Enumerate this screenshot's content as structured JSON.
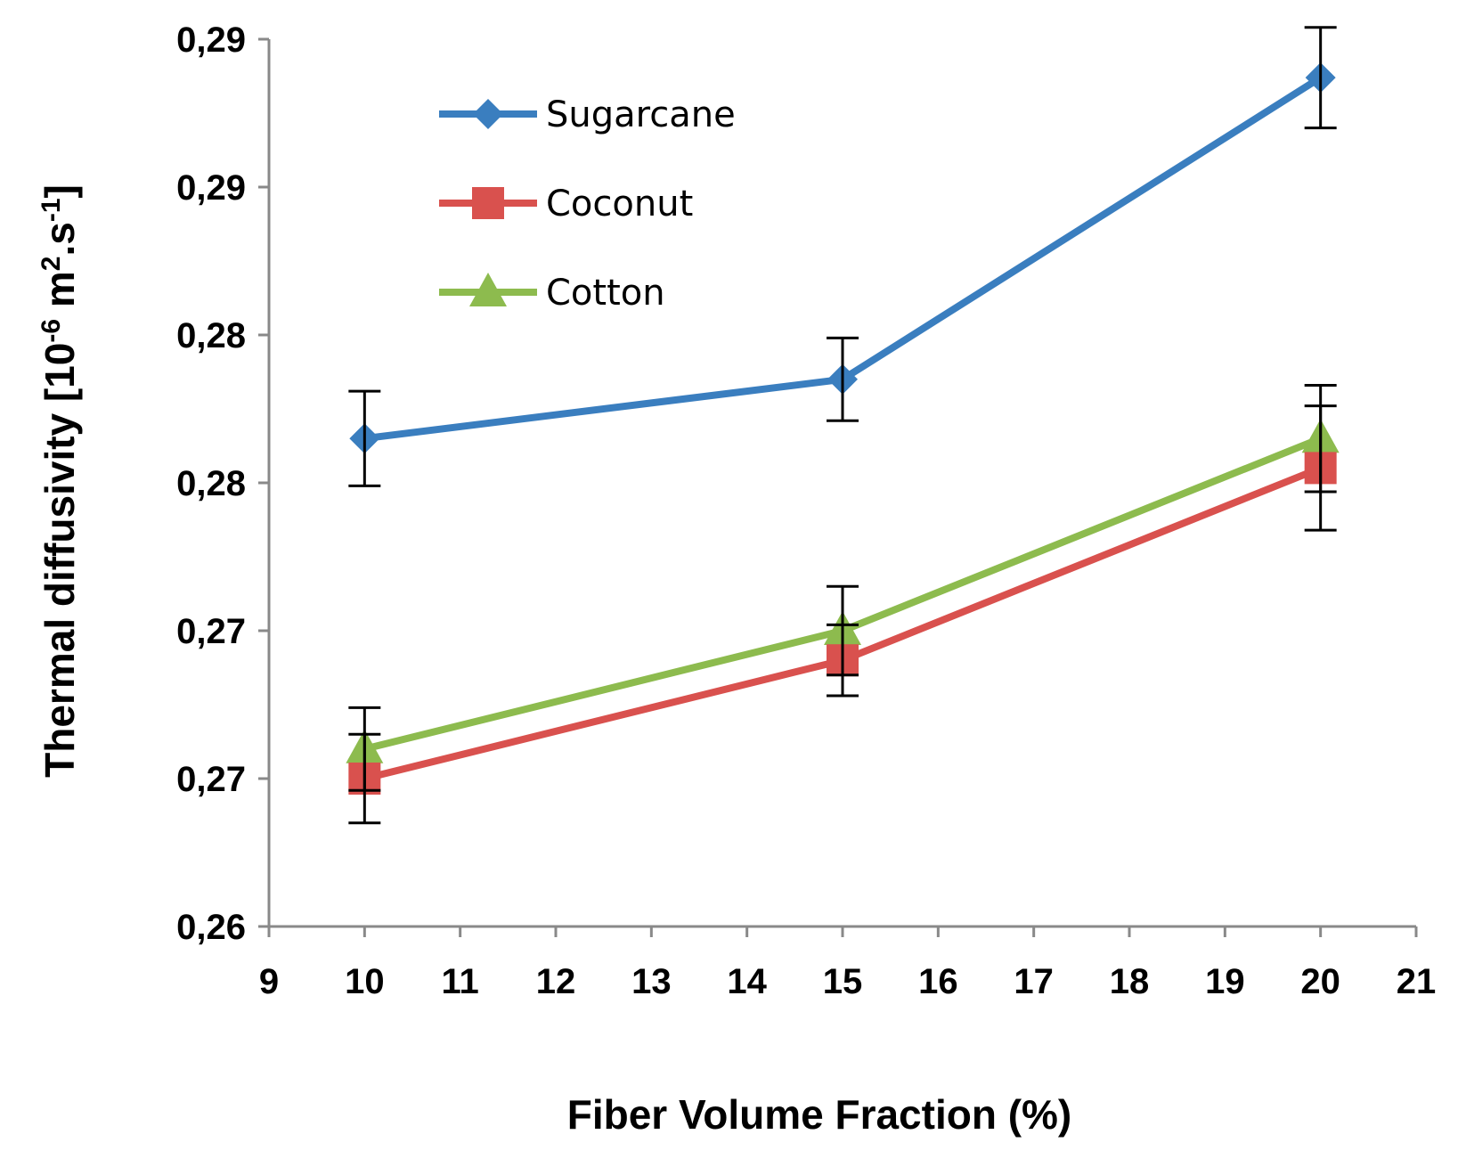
{
  "chart_data": {
    "type": "line",
    "title": "",
    "xlabel": "Fiber Volume Fraction (%)",
    "ylabel": {
      "text": "Thermal diffusivity [10",
      "exp1": "-6",
      "mid": " m",
      "exp2": "2",
      "mid2": ".s",
      "exp3": "-1",
      "end": "]"
    },
    "x_ticks": [
      "9",
      "10",
      "11",
      "12",
      "13",
      "14",
      "15",
      "16",
      "17",
      "18",
      "19",
      "20",
      "21"
    ],
    "xlim": [
      9,
      21
    ],
    "y_tick_values": [
      0.26,
      0.265,
      0.27,
      0.275,
      0.28,
      0.285,
      0.29
    ],
    "y_tick_labels": [
      "0,26",
      "0,27",
      "0,27",
      "0,28",
      "0,28",
      "0,29",
      "0,29"
    ],
    "ylim": [
      0.26,
      0.29
    ],
    "legend_position": "top-left",
    "series": [
      {
        "name": "Sugarcane",
        "color": "#3A7EBF",
        "marker": "diamond",
        "x": [
          10,
          15,
          20
        ],
        "values": [
          0.2765,
          0.2785,
          0.2887
        ],
        "errors": [
          0.0016,
          0.0014,
          0.0017
        ]
      },
      {
        "name": "Coconut",
        "color": "#D9514E",
        "marker": "square",
        "x": [
          10,
          15,
          20
        ],
        "values": [
          0.265,
          0.269,
          0.2755
        ],
        "errors": [
          0.0015,
          0.0012,
          0.0021
        ]
      },
      {
        "name": "Cotton",
        "color": "#8DBB4E",
        "marker": "triangle",
        "x": [
          10,
          15,
          20
        ],
        "values": [
          0.266,
          0.27,
          0.2765
        ],
        "errors": [
          0.0014,
          0.0015,
          0.0018
        ]
      }
    ]
  }
}
